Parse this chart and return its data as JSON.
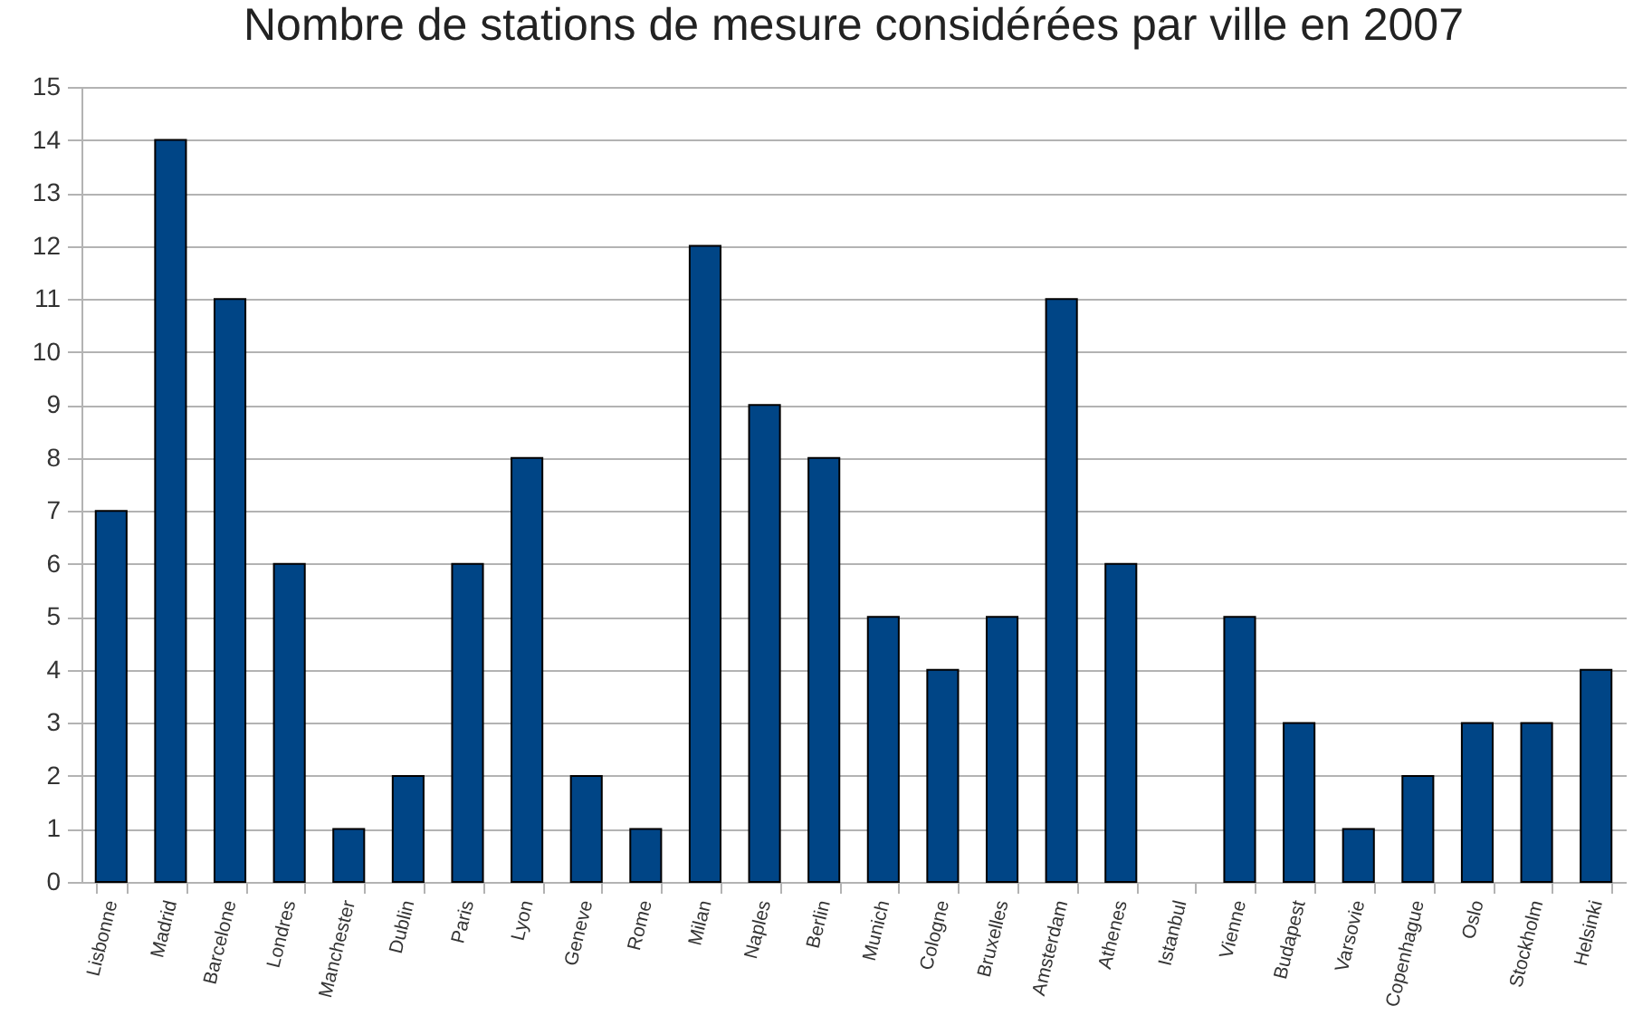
{
  "chart_data": {
    "type": "bar",
    "title": "Nombre de stations de mesure considérées par ville en 2007",
    "categories": [
      "Lisbonne",
      "Madrid",
      "Barcelone",
      "Londres",
      "Manchester",
      "Dublin",
      "Paris",
      "Lyon",
      "Geneve",
      "Rome",
      "Milan",
      "Naples",
      "Berlin",
      "Munich",
      "Cologne",
      "Bruxelles",
      "Amsterdam",
      "Athenes",
      "Istanbul",
      "Vienne",
      "Budapest",
      "Varsovie",
      "Copenhague",
      "Oslo",
      "Stockholm",
      "Helsinki"
    ],
    "values": [
      7,
      14,
      11,
      6,
      1,
      2,
      6,
      8,
      2,
      1,
      12,
      9,
      8,
      5,
      4,
      5,
      11,
      6,
      null,
      5,
      3,
      1,
      2,
      3,
      3,
      4
    ],
    "color": "#004586",
    "ylim": [
      0,
      15
    ],
    "yticks": [
      0,
      1,
      2,
      3,
      4,
      5,
      6,
      7,
      8,
      9,
      10,
      11,
      12,
      13,
      14,
      15
    ],
    "grid": "y"
  }
}
